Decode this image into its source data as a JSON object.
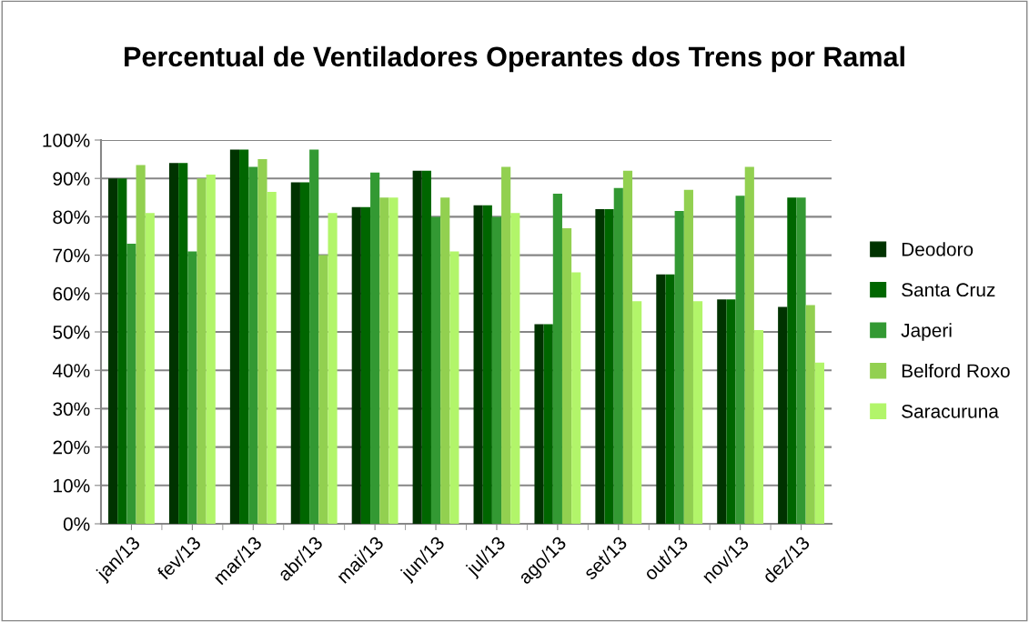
{
  "chart_data": {
    "type": "bar",
    "title": "Percentual de Ventiladores Operantes dos Trens por Ramal",
    "categories": [
      "jan/13",
      "fev/13",
      "mar/13",
      "abr/13",
      "mai/13",
      "jun/13",
      "jul/13",
      "ago/13",
      "set/13",
      "out/13",
      "nov/13",
      "dez/13"
    ],
    "series": [
      {
        "name": "Deodoro",
        "color": "#003300",
        "values": [
          90,
          94,
          97.5,
          89,
          82.5,
          92,
          83,
          52,
          82,
          65,
          58.5,
          56.5
        ]
      },
      {
        "name": "Santa Cruz",
        "color": "#006600",
        "values": [
          90,
          94,
          97.5,
          89,
          82.5,
          92,
          83,
          52,
          82,
          65,
          58.5,
          85
        ]
      },
      {
        "name": "Japeri",
        "color": "#339933",
        "values": [
          73,
          71,
          93,
          97.5,
          91.5,
          80,
          80,
          86,
          87.5,
          81.5,
          85.5,
          85
        ]
      },
      {
        "name": "Belford Roxo",
        "color": "#92d050",
        "values": [
          93.5,
          90,
          95,
          70,
          85,
          85,
          93,
          77,
          92,
          87,
          93,
          57
        ]
      },
      {
        "name": "Saracuruna",
        "color": "#b2f56a",
        "values": [
          81,
          91,
          86.5,
          81,
          85,
          71,
          81,
          65.5,
          58,
          58,
          50.5,
          42
        ]
      }
    ],
    "ylim": [
      0,
      100
    ],
    "yticks": [
      {
        "value": 0,
        "label": "0%"
      },
      {
        "value": 10,
        "label": "10%"
      },
      {
        "value": 20,
        "label": "20%"
      },
      {
        "value": 30,
        "label": "30%"
      },
      {
        "value": 40,
        "label": "40%"
      },
      {
        "value": 50,
        "label": "50%"
      },
      {
        "value": 60,
        "label": "60%"
      },
      {
        "value": 70,
        "label": "70%"
      },
      {
        "value": 80,
        "label": "80%"
      },
      {
        "value": 90,
        "label": "90%"
      },
      {
        "value": 100,
        "label": "100%"
      }
    ],
    "grid": "y",
    "legend": "right"
  }
}
